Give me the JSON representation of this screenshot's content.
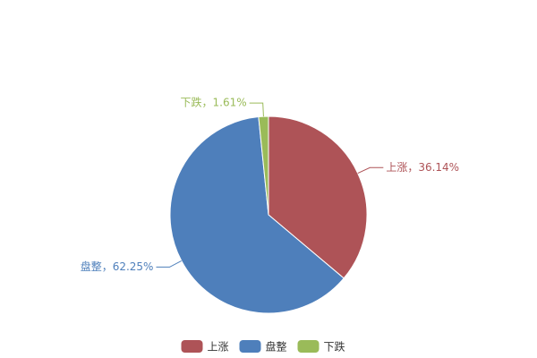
{
  "chart_data": {
    "type": "pie",
    "categories": [
      "上涨",
      "盘整",
      "下跌"
    ],
    "values": [
      36.14,
      62.25,
      1.61
    ],
    "value_labels": [
      "上涨，36.14%",
      "盘整，62.25%",
      "下跌，1.61%"
    ],
    "colors": [
      "#ae5357",
      "#4e7fbb",
      "#9abb59"
    ],
    "legend": "bottom"
  }
}
